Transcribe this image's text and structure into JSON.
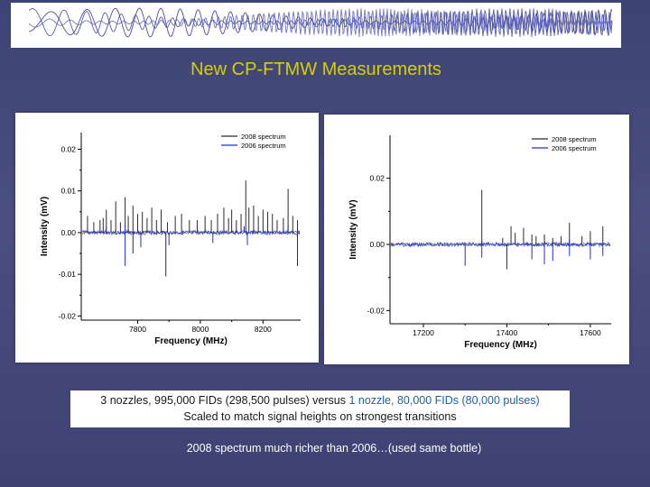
{
  "slide": {
    "title": "New CP-FTMW Measurements",
    "caption": {
      "line1_part1": "3 nozzles, 995,000 FIDs (298,500 pulses) versus ",
      "line1_part2": "1 nozzle, 80,000 FIDs (80,000 pulses)",
      "line2": "Scaled to match signal heights on strongest transitions"
    },
    "conclusion": "2008 spectrum much richer than 2006…(used same bottle)"
  },
  "colors": {
    "background": "#444a7a",
    "title": "#d4d000",
    "series_2008": "#2b2b2b",
    "series_2006": "#1f2fd6",
    "highlight_text": "#1f5fa5"
  },
  "chart_data": [
    {
      "type": "line",
      "xlabel": "Frequency (MHz)",
      "ylabel": "Intensity (mV)",
      "xlim": [
        7620,
        8320
      ],
      "ylim": [
        -0.021,
        0.024
      ],
      "xticks": [
        7800,
        8000,
        8200
      ],
      "xtick_labels": [
        "7800",
        "8000",
        "8200"
      ],
      "yticks": [
        0.02,
        0.01,
        0.0,
        -0.01,
        -0.02
      ],
      "ytick_labels": [
        "0.02",
        "0.01",
        "0.00",
        "-0.01",
        "-0.02"
      ],
      "legend": "top-right",
      "grid": false,
      "series": [
        {
          "name": "2008 spectrum",
          "color": "#2b2b2b",
          "peaks": [
            [
              7640,
              0.004
            ],
            [
              7660,
              0.0025
            ],
            [
              7680,
              0.003
            ],
            [
              7690,
              0.0035
            ],
            [
              7700,
              0.0055
            ],
            [
              7715,
              0.003
            ],
            [
              7730,
              0.0075
            ],
            [
              7745,
              0.0025
            ],
            [
              7760,
              0.0085
            ],
            [
              7770,
              0.004
            ],
            [
              7785,
              0.0065
            ],
            [
              7800,
              0.0045
            ],
            [
              7815,
              0.005
            ],
            [
              7830,
              0.0035
            ],
            [
              7845,
              0.006
            ],
            [
              7860,
              0.003
            ],
            [
              7875,
              0.0055
            ],
            [
              7895,
              0.0025
            ],
            [
              7920,
              0.004
            ],
            [
              7940,
              0.0045
            ],
            [
              7965,
              0.003
            ],
            [
              7990,
              0.003
            ],
            [
              8015,
              0.004
            ],
            [
              8035,
              0.003
            ],
            [
              8055,
              0.0045
            ],
            [
              8075,
              0.006
            ],
            [
              8090,
              0.0035
            ],
            [
              8100,
              0.0055
            ],
            [
              8115,
              0.003
            ],
            [
              8130,
              0.0045
            ],
            [
              8145,
              0.0125
            ],
            [
              8155,
              0.006
            ],
            [
              8170,
              0.0065
            ],
            [
              8185,
              0.004
            ],
            [
              8200,
              0.0055
            ],
            [
              8215,
              0.005
            ],
            [
              8230,
              0.0045
            ],
            [
              8245,
              0.003
            ],
            [
              8265,
              0.0035
            ],
            [
              8280,
              0.0105
            ],
            [
              8295,
              0.004
            ],
            [
              8310,
              0.003
            ]
          ],
          "negative_peaks": [
            [
              7785,
              -0.005
            ],
            [
              7890,
              -0.0105
            ],
            [
              8310,
              -0.008
            ]
          ]
        },
        {
          "name": "2006 spectrum",
          "color": "#1f2fd6",
          "peaks": [
            [
              7700,
              0.0015
            ],
            [
              7760,
              0.0018
            ],
            [
              8140,
              0.0015
            ],
            [
              8280,
              0.0018
            ]
          ],
          "negative_peaks": [
            [
              7760,
              -0.008
            ],
            [
              7810,
              -0.0035
            ],
            [
              7900,
              -0.003
            ],
            [
              8040,
              -0.0025
            ],
            [
              8150,
              -0.003
            ]
          ]
        }
      ]
    },
    {
      "type": "line",
      "xlabel": "Frequency (MHz)",
      "ylabel": "Intensity (mV)",
      "xlim": [
        17120,
        17650
      ],
      "ylim": [
        -0.024,
        0.033
      ],
      "xticks": [
        17200,
        17400,
        17600
      ],
      "xtick_labels": [
        "17200",
        "17400",
        "17600"
      ],
      "yticks": [
        0.02,
        0.0,
        -0.02
      ],
      "ytick_labels": [
        "0.02",
        "0.00",
        "-0.02"
      ],
      "legend": "top-right",
      "grid": false,
      "series": [
        {
          "name": "2008 spectrum",
          "color": "#2b2b2b",
          "peaks": [
            [
              17340,
              0.0165
            ],
            [
              17390,
              0.002
            ],
            [
              17410,
              0.0055
            ],
            [
              17420,
              0.0035
            ],
            [
              17440,
              0.005
            ],
            [
              17460,
              0.003
            ],
            [
              17470,
              0.0025
            ],
            [
              17490,
              0.003
            ],
            [
              17510,
              0.002
            ],
            [
              17530,
              0.0025
            ],
            [
              17550,
              0.0065
            ],
            [
              17580,
              0.0025
            ],
            [
              17600,
              0.004
            ],
            [
              17630,
              0.0055
            ]
          ],
          "negative_peaks": [
            [
              17400,
              -0.0075
            ]
          ]
        },
        {
          "name": "2006 spectrum",
          "color": "#1f2fd6",
          "peaks": [
            [
              17340,
              0.0012
            ],
            [
              17550,
              0.0015
            ]
          ],
          "negative_peaks": [
            [
              17300,
              -0.0065
            ],
            [
              17340,
              -0.004
            ],
            [
              17400,
              -0.005
            ],
            [
              17460,
              -0.0045
            ],
            [
              17490,
              -0.006
            ],
            [
              17510,
              -0.005
            ],
            [
              17550,
              -0.0035
            ],
            [
              17600,
              -0.0045
            ],
            [
              17630,
              -0.0035
            ]
          ]
        }
      ]
    }
  ]
}
